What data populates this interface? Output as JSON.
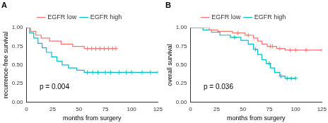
{
  "chart_data": [
    {
      "type": "line",
      "title": "A",
      "x_label": "months from surgery",
      "y_label": "recurrence-free survival",
      "annotation": "p = 0.004",
      "legend": "top",
      "grid": false,
      "xlim": [
        0,
        125
      ],
      "xticks": [
        0,
        25,
        50,
        75,
        100,
        125
      ],
      "ylim": [
        0,
        1
      ],
      "yticks": [
        {
          "value": 0,
          "label": "0.00"
        },
        {
          "value": 0.25,
          "label": "0.25"
        },
        {
          "value": 0.5,
          "label": "0.50"
        },
        {
          "value": 0.75,
          "label": "0.75"
        },
        {
          "value": 1,
          "label": "1.00"
        }
      ],
      "series": [
        {
          "name": "EGFR low",
          "color": "#F8766D",
          "line_style": "step",
          "marker": "cross",
          "x": [
            0,
            4,
            9,
            14,
            22,
            33,
            44,
            55,
            85
          ],
          "values": [
            1,
            0.95,
            0.9,
            0.86,
            0.82,
            0.78,
            0.75,
            0.72,
            0.72
          ],
          "censor_x": [
            58,
            62,
            66,
            70,
            74,
            78,
            82,
            85
          ],
          "censor_values": [
            0.72,
            0.72,
            0.72,
            0.72,
            0.72,
            0.72,
            0.72,
            0.72
          ]
        },
        {
          "name": "EGFR high",
          "color": "#00BFC4",
          "line_style": "step",
          "marker": "cross",
          "x": [
            0,
            3,
            7,
            11,
            15,
            19,
            24,
            29,
            34,
            40,
            48,
            55,
            125
          ],
          "values": [
            1,
            0.93,
            0.86,
            0.79,
            0.73,
            0.67,
            0.61,
            0.55,
            0.5,
            0.46,
            0.43,
            0.4,
            0.4
          ],
          "censor_x": [
            58,
            63,
            68,
            75,
            80,
            88,
            95,
            100,
            110,
            118,
            125
          ],
          "censor_values": [
            0.4,
            0.4,
            0.4,
            0.4,
            0.4,
            0.4,
            0.4,
            0.4,
            0.4,
            0.4,
            0.4
          ]
        }
      ]
    },
    {
      "type": "line",
      "title": "B",
      "x_label": "months from surgery",
      "y_label": "overall survival",
      "annotation": "p = 0.036",
      "legend": "top",
      "grid": false,
      "xlim": [
        0,
        125
      ],
      "xticks": [
        0,
        25,
        50,
        75,
        100,
        125
      ],
      "ylim": [
        0,
        1
      ],
      "yticks": [
        {
          "value": 0,
          "label": "0.00"
        },
        {
          "value": 0.25,
          "label": "0.25"
        },
        {
          "value": 0.5,
          "label": "0.50"
        },
        {
          "value": 0.75,
          "label": "0.75"
        },
        {
          "value": 1,
          "label": "1.00"
        }
      ],
      "series": [
        {
          "name": "EGFR low",
          "color": "#F8766D",
          "line_style": "step",
          "marker": "cross",
          "x": [
            0,
            18,
            26,
            40,
            52,
            60,
            64,
            68,
            73,
            82,
            90,
            125
          ],
          "values": [
            1,
            0.97,
            0.95,
            0.93,
            0.9,
            0.86,
            0.82,
            0.78,
            0.75,
            0.72,
            0.7,
            0.7
          ],
          "censor_x": [
            45,
            55,
            76,
            78,
            85,
            95,
            100,
            110,
            125
          ],
          "censor_values": [
            0.93,
            0.9,
            0.75,
            0.75,
            0.72,
            0.7,
            0.7,
            0.7,
            0.7
          ]
        },
        {
          "name": "EGFR high",
          "color": "#00BFC4",
          "line_style": "step",
          "marker": "cross",
          "x": [
            0,
            12,
            20,
            28,
            38,
            48,
            55,
            60,
            64,
            68,
            72,
            76,
            80,
            85,
            90,
            100
          ],
          "values": [
            1,
            0.97,
            0.94,
            0.9,
            0.87,
            0.83,
            0.78,
            0.71,
            0.64,
            0.57,
            0.52,
            0.46,
            0.4,
            0.35,
            0.32,
            0.32
          ],
          "censor_x": [
            42,
            62,
            75,
            86,
            92,
            96,
            100
          ],
          "censor_values": [
            0.87,
            0.71,
            0.52,
            0.35,
            0.32,
            0.32,
            0.32
          ]
        }
      ]
    }
  ]
}
